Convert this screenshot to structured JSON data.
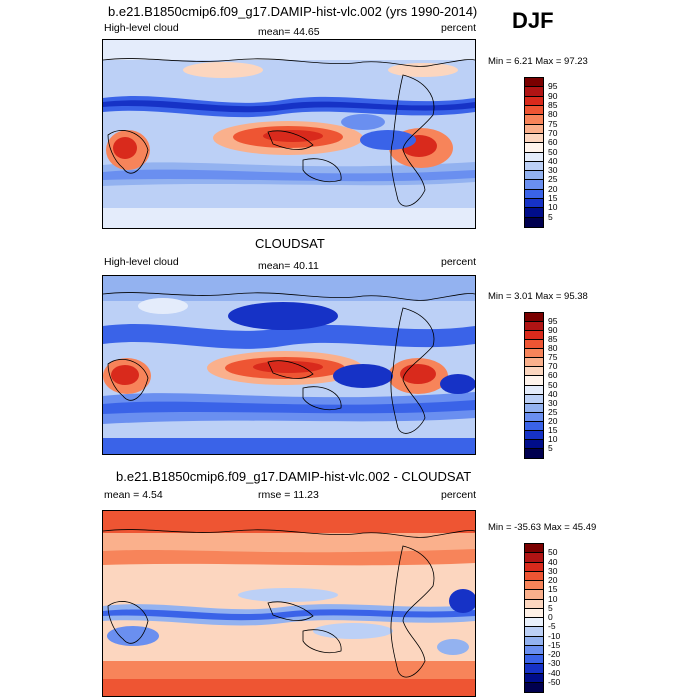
{
  "season": "DJF",
  "panels": [
    {
      "title": "b.e21.B1850cmip6.f09_g17.DAMIP-hist-vlc.002 (yrs 1990-2014)",
      "left_label": "High-level cloud",
      "center_label": "mean=  44.65",
      "right_label": "percent",
      "minmax": "Min =   6.21 Max =  97.23",
      "levels": [
        "95",
        "90",
        "85",
        "80",
        "75",
        "70",
        "60",
        "50",
        "40",
        "30",
        "25",
        "20",
        "15",
        "10",
        "5"
      ]
    },
    {
      "title": "CLOUDSAT",
      "left_label": "High-level cloud",
      "center_label": "mean=  40.11",
      "right_label": "percent",
      "minmax": "Min =   3.01 Max =  95.38",
      "levels": [
        "95",
        "90",
        "85",
        "80",
        "75",
        "70",
        "60",
        "50",
        "40",
        "30",
        "25",
        "20",
        "15",
        "10",
        "5"
      ]
    },
    {
      "title": "b.e21.B1850cmip6.f09_g17.DAMIP-hist-vlc.002 - CLOUDSAT",
      "left_label": "mean =   4.54",
      "center_label": "rmse =  11.23",
      "right_label": "percent",
      "minmax": "Min = -35.63 Max =  45.49",
      "levels": [
        "50",
        "40",
        "30",
        "20",
        "15",
        "10",
        "5",
        "0",
        "-5",
        "-10",
        "-15",
        "-20",
        "-30",
        "-40",
        "-50"
      ]
    }
  ],
  "colors": {
    "abs_scale": [
      "#7a0000",
      "#b01414",
      "#d92a1c",
      "#ee5533",
      "#f7845a",
      "#fab08c",
      "#fcd6bf",
      "#fff4ec",
      "#e4ecfb",
      "#bcd0f6",
      "#93b2f0",
      "#6a8ff0",
      "#3a63e8",
      "#1632c6",
      "#000d8a",
      "#00004f"
    ],
    "diff_scale": [
      "#7a0000",
      "#b01414",
      "#d92a1c",
      "#ee5533",
      "#f7845a",
      "#fab08c",
      "#fcd6bf",
      "#fff1e6",
      "#eaf1fc",
      "#bcd0f6",
      "#93b2f0",
      "#6a8ff0",
      "#3a63e8",
      "#1632c6",
      "#000d8a",
      "#00004f"
    ]
  }
}
